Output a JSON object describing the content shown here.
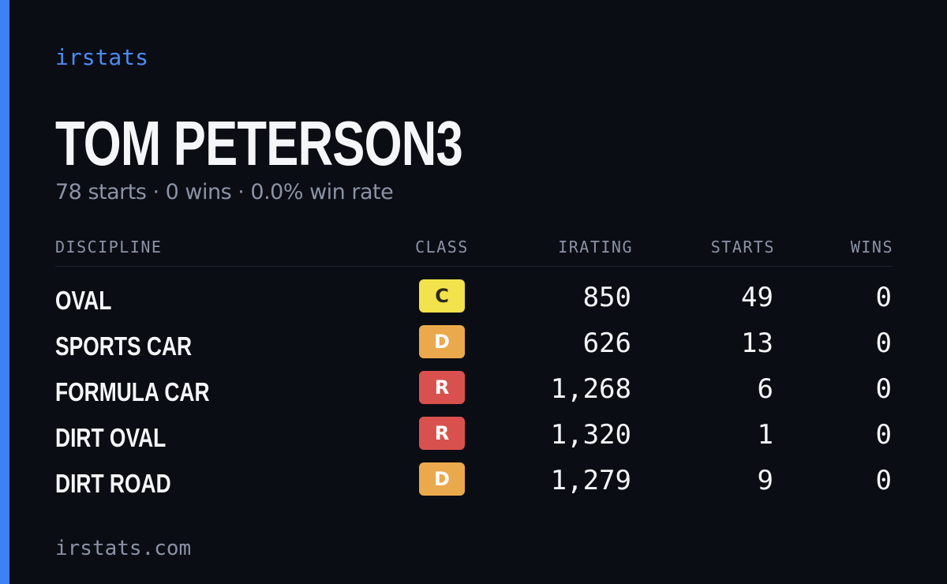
{
  "brand": "irstats",
  "title": "TOM PETERSON3",
  "subtitle": "78 starts · 0 wins · 0.0% win rate",
  "table": {
    "headers": [
      "DISCIPLINE",
      "CLASS",
      "IRATING",
      "STARTS",
      "WINS"
    ],
    "rows": [
      [
        "OVAL",
        "C",
        "850",
        "49",
        "0"
      ],
      [
        "SPORTS CAR",
        "D",
        "626",
        "13",
        "0"
      ],
      [
        "FORMULA CAR",
        "R",
        "1,268",
        "6",
        "0"
      ],
      [
        "DIRT OVAL",
        "R",
        "1,320",
        "1",
        "0"
      ],
      [
        "DIRT ROAD",
        "D",
        "1,279",
        "9",
        "0"
      ]
    ],
    "class_colors": {
      "C": "#f2e24b",
      "D": "#eaa94c",
      "R": "#d9514e"
    },
    "class_text_colors": {
      "C": "#2a2a1a",
      "D": "#ffffff",
      "R": "#ffffff"
    }
  },
  "footer": "irstats.com"
}
